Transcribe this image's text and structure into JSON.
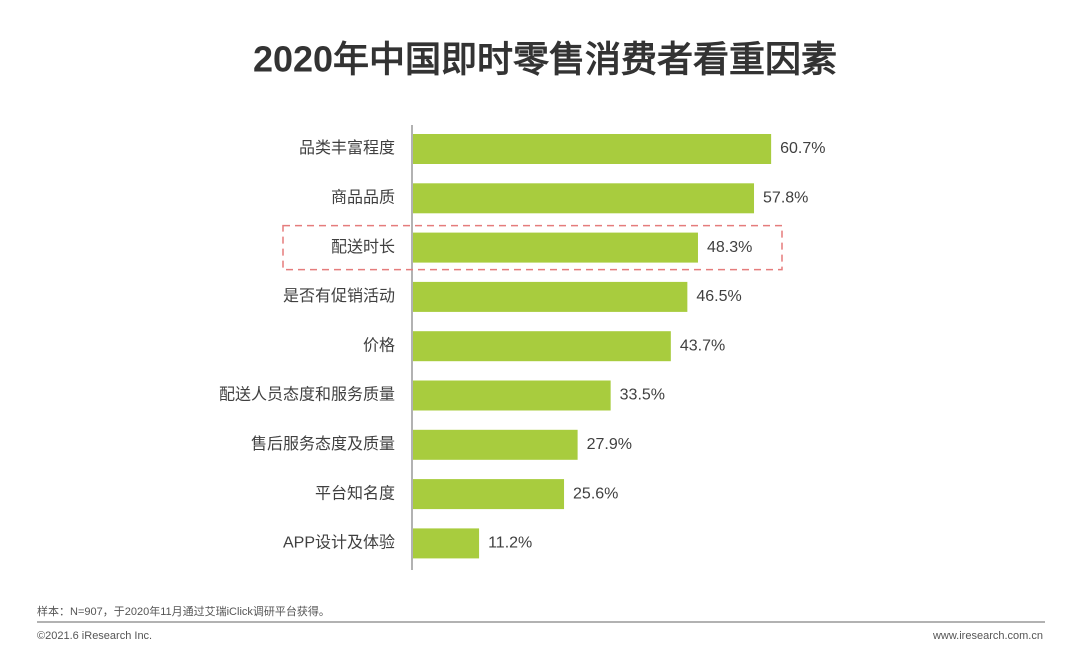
{
  "chart_data": {
    "type": "bar",
    "orientation": "horizontal",
    "title": "2020年中国即时零售消费者看重因素",
    "categories": [
      "品类丰富程度",
      "商品品质",
      "配送时长",
      "是否有促销活动",
      "价格",
      "配送人员态度和服务质量",
      "售后服务态度及质量",
      "平台知名度",
      "APP设计及体验"
    ],
    "values": [
      60.7,
      57.8,
      48.3,
      46.5,
      43.7,
      33.5,
      27.9,
      25.6,
      11.2
    ],
    "value_labels": [
      "60.7%",
      "57.8%",
      "48.3%",
      "46.5%",
      "43.7%",
      "33.5%",
      "27.9%",
      "25.6%",
      "11.2%"
    ],
    "color": "#a8cc3e"
  },
  "footnote": "样本：N=907，于2020年11月通过艾瑞iClick调研平台获得。",
  "copyright": "©2021.6 iResearch Inc.",
  "website": "www.iresearch.com.cn"
}
